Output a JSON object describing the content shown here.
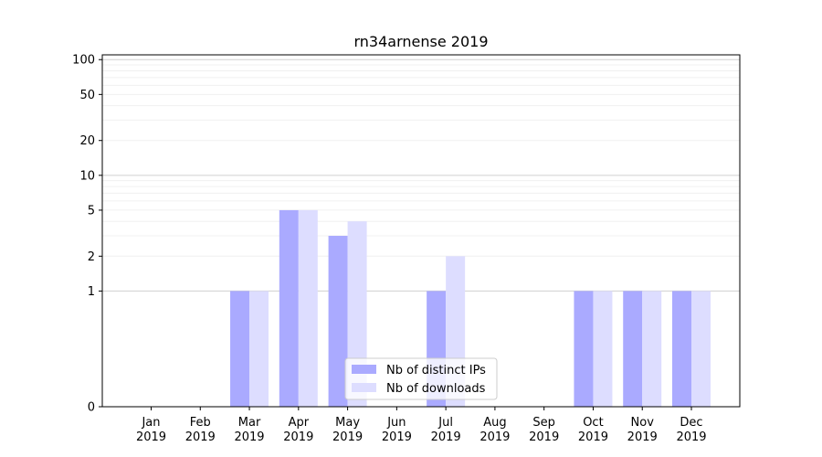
{
  "chart_data": {
    "type": "bar",
    "title": "rn34arnense 2019",
    "xlabel": "",
    "ylabel": "",
    "y_scale": "symlog",
    "ylim": [
      0,
      110
    ],
    "yticks": [
      0,
      1,
      2,
      5,
      10,
      20,
      50,
      100
    ],
    "grid": true,
    "legend_position": "lower-center",
    "categories": [
      [
        "Jan",
        "2019"
      ],
      [
        "Feb",
        "2019"
      ],
      [
        "Mar",
        "2019"
      ],
      [
        "Apr",
        "2019"
      ],
      [
        "May",
        "2019"
      ],
      [
        "Jun",
        "2019"
      ],
      [
        "Jul",
        "2019"
      ],
      [
        "Aug",
        "2019"
      ],
      [
        "Sep",
        "2019"
      ],
      [
        "Oct",
        "2019"
      ],
      [
        "Nov",
        "2019"
      ],
      [
        "Dec",
        "2019"
      ]
    ],
    "series": [
      {
        "name": "Nb of distinct IPs",
        "color": "#aaaaff",
        "values": [
          0,
          0,
          1,
          5,
          3,
          0,
          1,
          0,
          0,
          1,
          1,
          1
        ]
      },
      {
        "name": "Nb of downloads",
        "color": "#ddddff",
        "values": [
          0,
          0,
          1,
          5,
          4,
          0,
          2,
          0,
          0,
          1,
          1,
          1
        ]
      }
    ]
  }
}
